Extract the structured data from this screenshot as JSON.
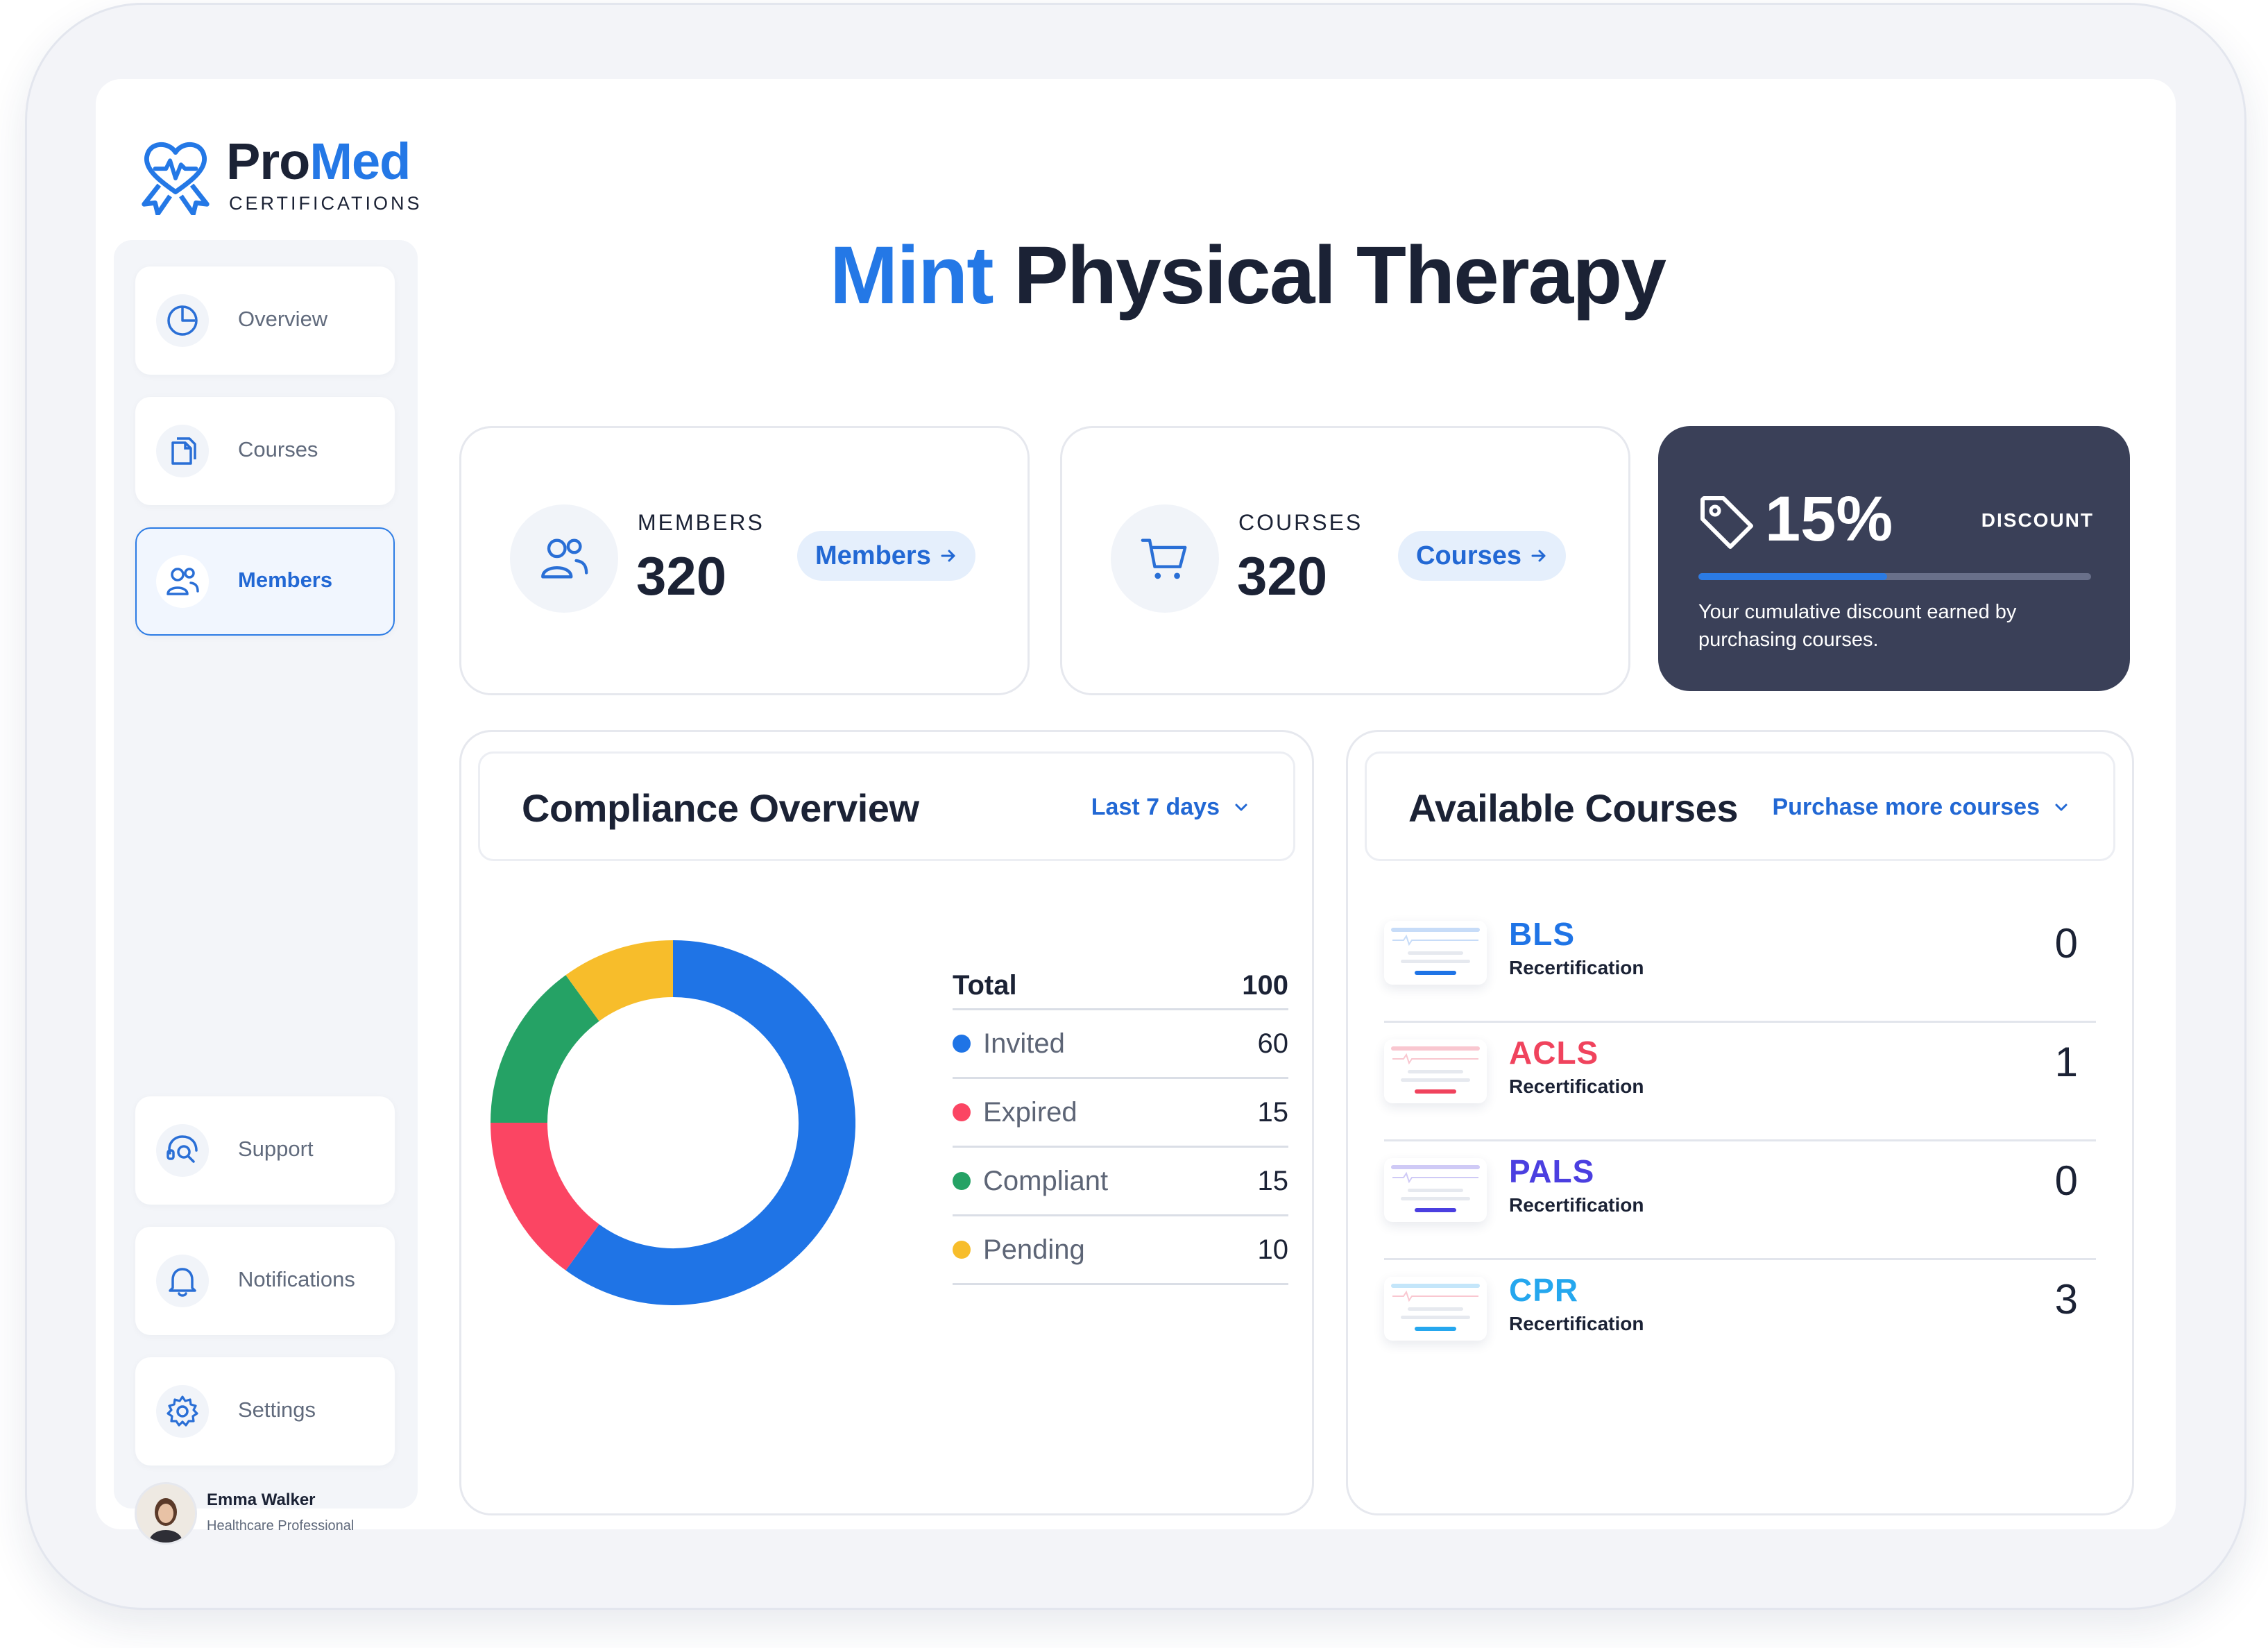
{
  "brand": {
    "name_part1": "Pro",
    "name_part2": "Med",
    "subtitle": "CERTIFICATIONS"
  },
  "sidebar": {
    "items": [
      {
        "label": "Overview",
        "icon": "pie-chart-icon",
        "active": false
      },
      {
        "label": "Courses",
        "icon": "documents-icon",
        "active": false
      },
      {
        "label": "Members",
        "icon": "users-icon",
        "active": true
      },
      {
        "label": "Support",
        "icon": "support-search-icon",
        "active": false
      },
      {
        "label": "Notifications",
        "icon": "bell-icon",
        "active": false
      },
      {
        "label": "Settings",
        "icon": "gear-icon",
        "active": false
      }
    ],
    "user": {
      "name": "Emma Walker",
      "role": "Healthcare Professional"
    }
  },
  "page": {
    "title_accent": "Mint",
    "title_rest": "Physical Therapy"
  },
  "stats": {
    "members": {
      "label": "MEMBERS",
      "value": "320",
      "button": "Members",
      "icon": "users-icon"
    },
    "courses": {
      "label": "COURSES",
      "value": "320",
      "button": "Courses",
      "icon": "cart-icon"
    }
  },
  "discount": {
    "value": "15%",
    "label": "DISCOUNT",
    "progress_fraction": 0.48,
    "description": "Your cumulative discount earned by purchasing courses.",
    "icon": "tag-icon"
  },
  "compliance": {
    "title": "Compliance Overview",
    "filter": "Last 7 days",
    "total_label": "Total",
    "total_value": "100",
    "items": [
      {
        "label": "Invited",
        "value": "60",
        "color": "#1f74e6"
      },
      {
        "label": "Expired",
        "value": "15",
        "color": "#fb4563"
      },
      {
        "label": "Compliant",
        "value": "15",
        "color": "#25a265"
      },
      {
        "label": "Pending",
        "value": "10",
        "color": "#f7bd2b"
      }
    ]
  },
  "courses_panel": {
    "title": "Available Courses",
    "action": "Purchase more courses",
    "items": [
      {
        "name": "BLS",
        "sub": "Recertification",
        "count": "0",
        "color": "#1f74e6"
      },
      {
        "name": "ACLS",
        "sub": "Recertification",
        "count": "1",
        "color": "#f0435d"
      },
      {
        "name": "PALS",
        "sub": "Recertification",
        "count": "0",
        "color": "#4b3fe0"
      },
      {
        "name": "CPR",
        "sub": "Recertification",
        "count": "3",
        "color": "#25a7ee"
      }
    ]
  }
}
